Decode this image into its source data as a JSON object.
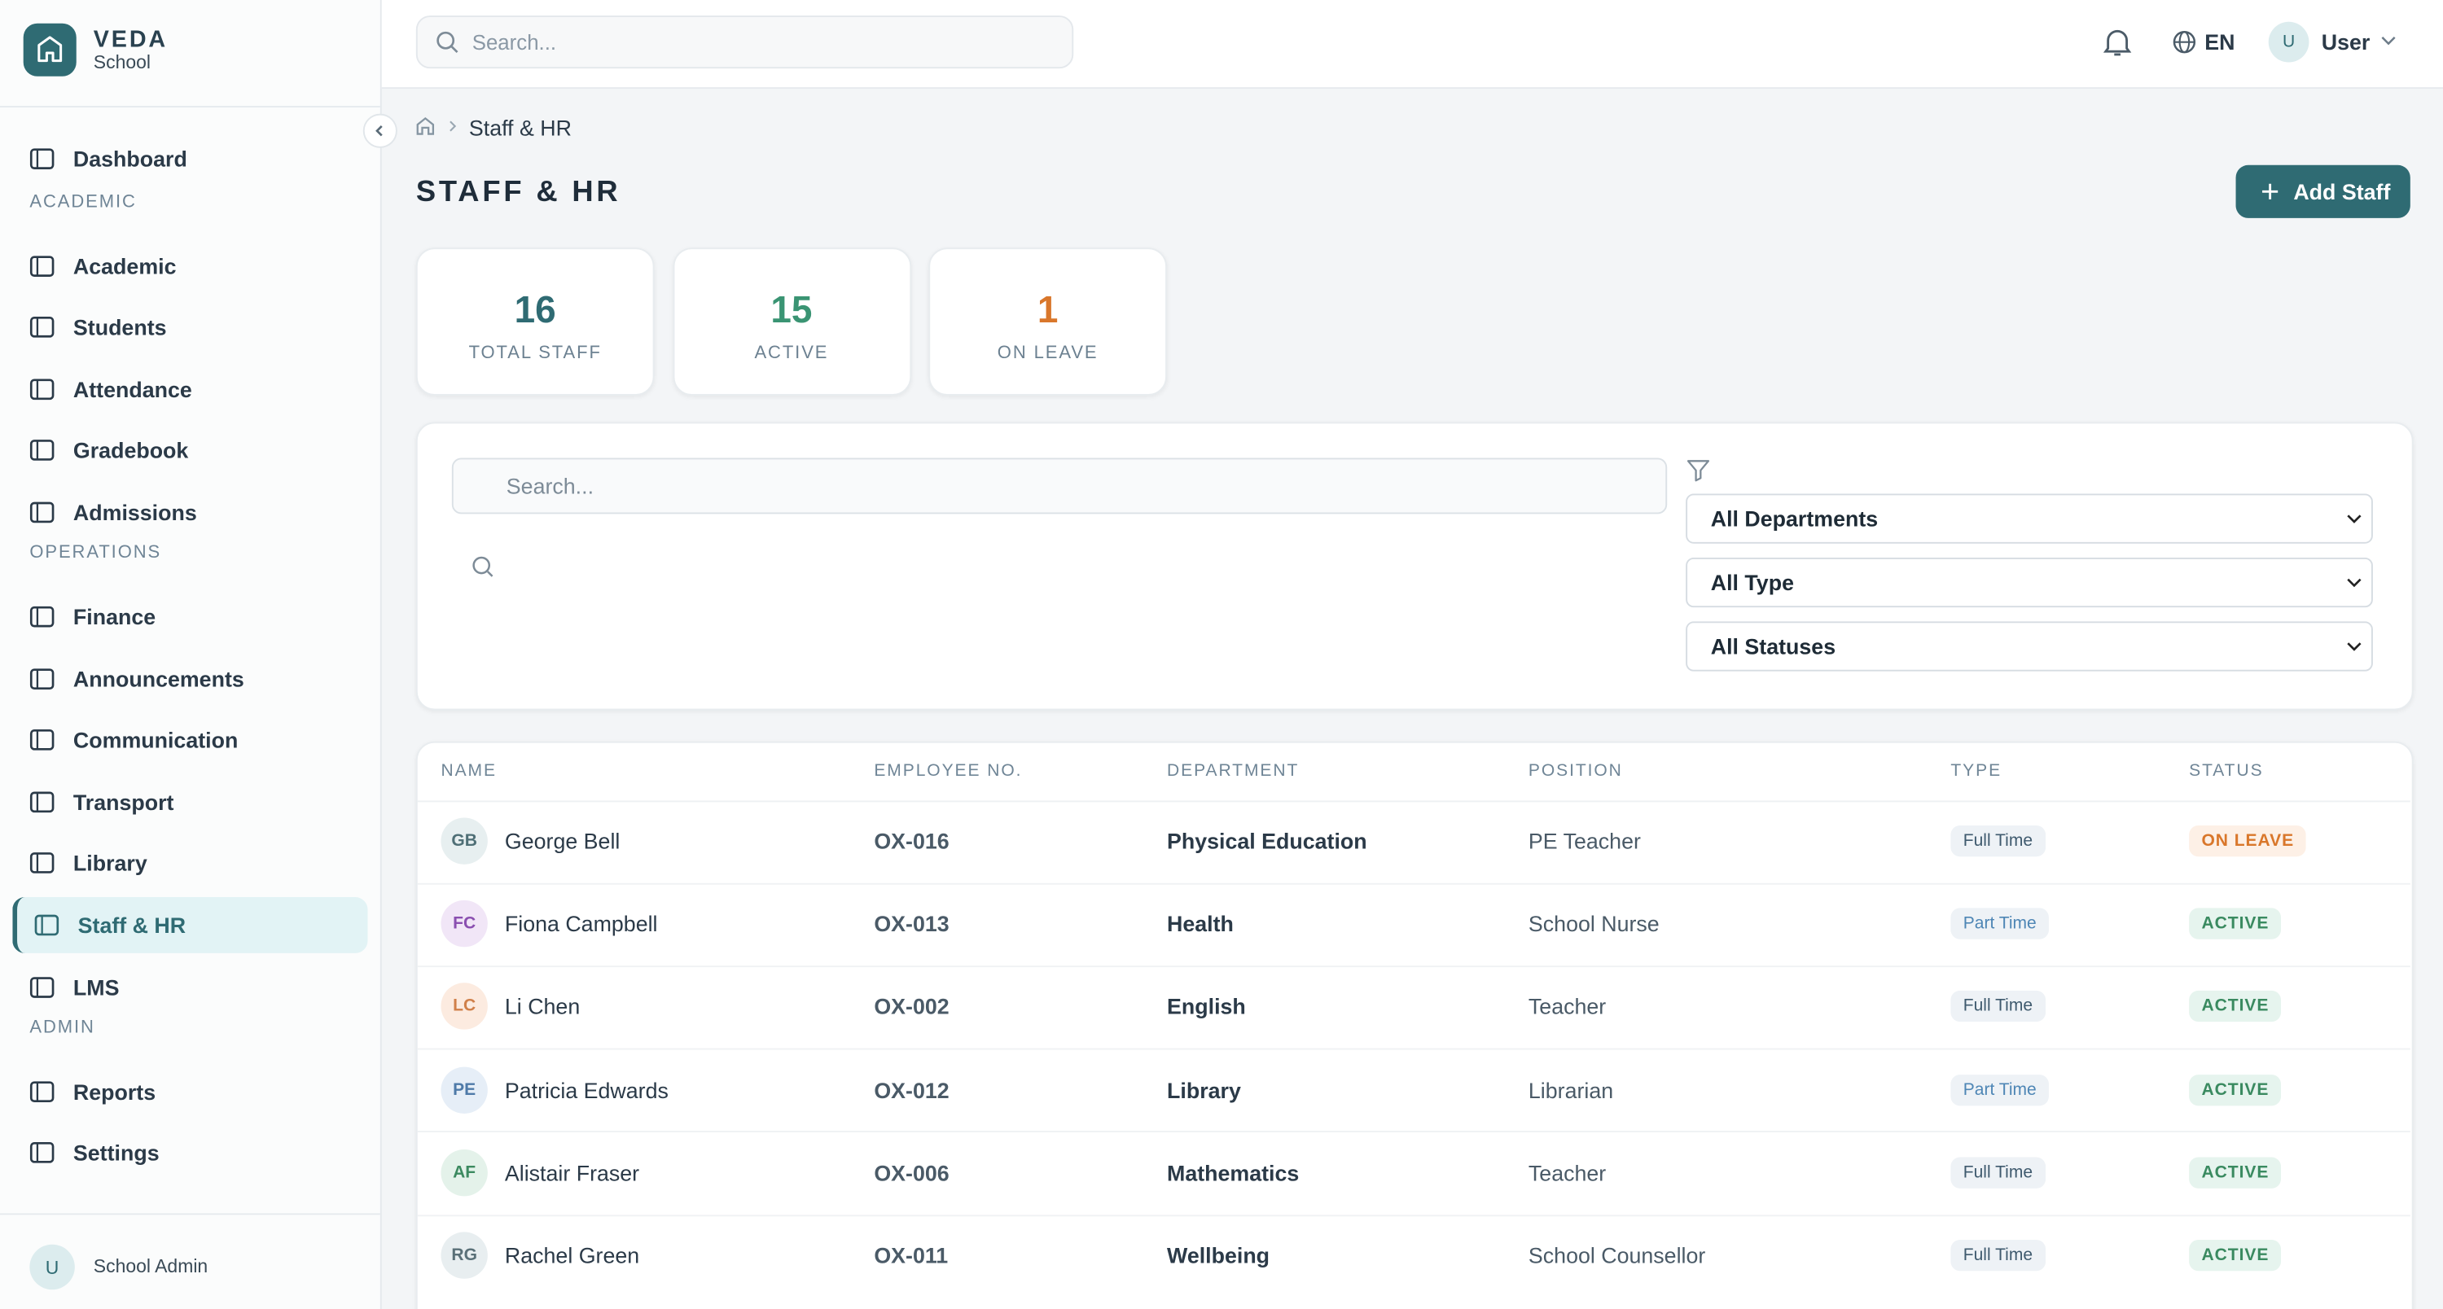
{
  "brand": {
    "name": "VEDA",
    "sub": "School"
  },
  "topbar": {
    "search": "Search...",
    "lang": "EN",
    "avatar": "U",
    "user": "User"
  },
  "nav": {
    "top": [
      "Dashboard"
    ],
    "groups": [
      {
        "title": "ACADEMIC",
        "items": [
          "Academic",
          "Students",
          "Attendance",
          "Gradebook",
          "Admissions"
        ]
      },
      {
        "title": "OPERATIONS",
        "items": [
          "Finance",
          "Announcements",
          "Communication",
          "Transport",
          "Library",
          "Staff & HR",
          "LMS"
        ]
      },
      {
        "title": "ADMIN",
        "items": [
          "Reports",
          "Settings"
        ]
      }
    ]
  },
  "footer": {
    "avatar": "U",
    "name": "School Admin"
  },
  "breadcrumb": "Staff & HR",
  "page_title": "STAFF & HR",
  "add_button": "Add Staff",
  "stats": [
    {
      "value": 16,
      "label": "TOTAL STAFF"
    },
    {
      "value": 15,
      "label": "ACTIVE"
    },
    {
      "value": 1,
      "label": "ON LEAVE"
    }
  ],
  "filters": {
    "search": "Search...",
    "department": "All Departments",
    "type": "All Type",
    "status": "All Statuses"
  },
  "table": {
    "headers": [
      "NAME",
      "EMPLOYEE NO.",
      "DEPARTMENT",
      "POSITION",
      "TYPE",
      "STATUS"
    ],
    "rows": [
      [
        "GB",
        "George Bell",
        "OX-016",
        "Physical Education",
        "PE Teacher",
        "Full Time",
        "ON LEAVE"
      ],
      [
        "FC",
        "Fiona Campbell",
        "OX-013",
        "Health",
        "School Nurse",
        "Part Time",
        "ACTIVE"
      ],
      [
        "LC",
        "Li Chen",
        "OX-002",
        "English",
        "Teacher",
        "Full Time",
        "ACTIVE"
      ],
      [
        "PE",
        "Patricia Edwards",
        "OX-012",
        "Library",
        "Librarian",
        "Part Time",
        "ACTIVE"
      ],
      [
        "AF",
        "Alistair Fraser",
        "OX-006",
        "Mathematics",
        "Teacher",
        "Full Time",
        "ACTIVE"
      ],
      [
        "RG",
        "Rachel Green",
        "OX-011",
        "Wellbeing",
        "School Counsellor",
        "Full Time",
        "ACTIVE"
      ]
    ]
  }
}
